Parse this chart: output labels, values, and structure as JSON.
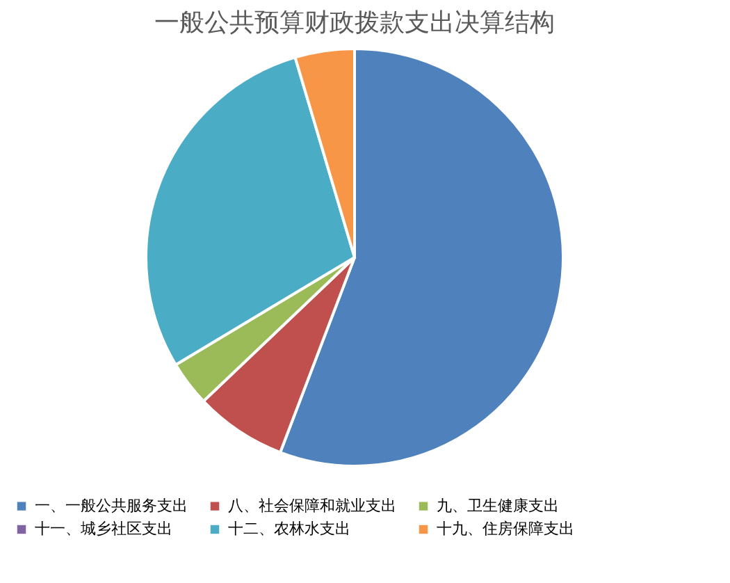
{
  "chart_data": {
    "type": "pie",
    "title": "一般公共预算财政拨款支出决算结构",
    "categories": [
      "一、一般公共服务支出",
      "八、社会保障和就业支出",
      "九、卫生健康支出",
      "十一、城乡社区支出",
      "十二、农林水支出",
      "十九、住房保障支出"
    ],
    "values": [
      55.8,
      7.1,
      3.5,
      0,
      29.0,
      4.6
    ],
    "colors": [
      "#4f81bd",
      "#c0504d",
      "#9bbb59",
      "#8064a2",
      "#4bacc6",
      "#f79646"
    ],
    "legend": "bottom"
  }
}
